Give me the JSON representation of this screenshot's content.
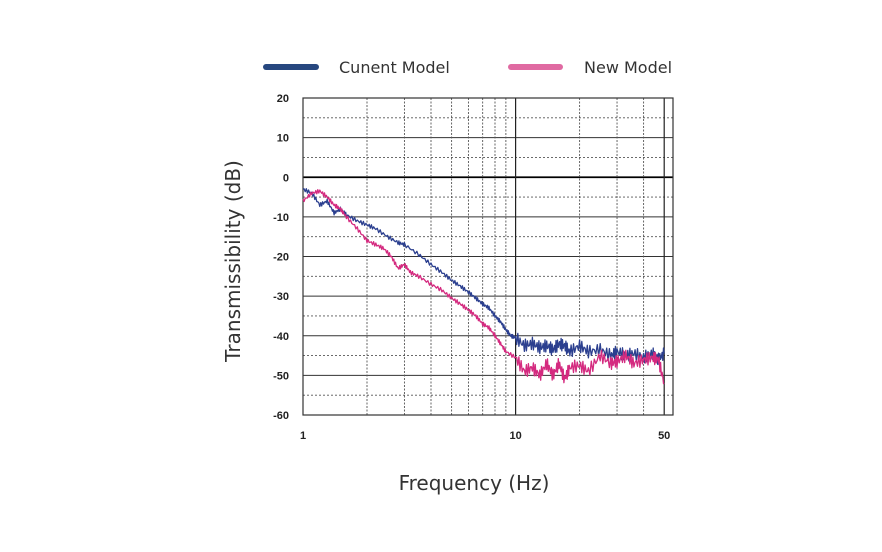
{
  "chart_data": {
    "type": "line",
    "title": "",
    "xlabel": "Frequency (Hz)",
    "ylabel": "Transmissibility (dB)",
    "x_scale": "log",
    "xlim": [
      1,
      55
    ],
    "ylim": [
      -60,
      20
    ],
    "x_ticks": [
      1,
      10,
      50
    ],
    "x_tick_labels": [
      "1",
      "10",
      "50"
    ],
    "y_ticks": [
      20,
      10,
      0,
      -10,
      -20,
      -30,
      -40,
      -50,
      -60
    ],
    "y_tick_labels": [
      "20",
      "10",
      "0",
      "-10",
      "-20",
      "-30",
      "-40",
      "-50",
      "-60"
    ],
    "grid": true,
    "legend_position": "top",
    "series": [
      {
        "name": "Cunent Model",
        "color": "#2b3f8f",
        "legend_color": "#27477f",
        "x": [
          1.0,
          1.1,
          1.2,
          1.3,
          1.4,
          1.5,
          1.6,
          1.8,
          2.0,
          2.2,
          2.5,
          2.8,
          3.0,
          3.5,
          4.0,
          4.5,
          5.0,
          5.5,
          6.0,
          6.5,
          7.0,
          7.5,
          8.0,
          8.5,
          9.0,
          9.5,
          10.0,
          11.0,
          12.0,
          13.0,
          14.0,
          15.0,
          16.0,
          17.0,
          18.0,
          20.0,
          22.0,
          25.0,
          28.0,
          30.0,
          33.0,
          36.0,
          40.0,
          44.0,
          47.0,
          50.0
        ],
        "y": [
          -3,
          -4,
          -7,
          -6,
          -9,
          -8,
          -9.5,
          -11,
          -12,
          -13,
          -15,
          -16.5,
          -17,
          -19.5,
          -22,
          -24,
          -26,
          -27.5,
          -29,
          -30.5,
          -32,
          -33,
          -35,
          -36.5,
          -38.5,
          -40,
          -40.5,
          -42.5,
          -42,
          -43,
          -42.5,
          -43.5,
          -42,
          -42.5,
          -44,
          -42.5,
          -44,
          -43.5,
          -45,
          -44,
          -45,
          -44.5,
          -45.5,
          -44.5,
          -46,
          -44.5
        ]
      },
      {
        "name": "New Model",
        "color": "#d42a7f",
        "legend_color": "#e06aa2",
        "x": [
          1.0,
          1.1,
          1.2,
          1.3,
          1.4,
          1.5,
          1.6,
          1.8,
          2.0,
          2.2,
          2.4,
          2.6,
          2.8,
          3.0,
          3.2,
          3.5,
          4.0,
          4.5,
          5.0,
          5.5,
          6.0,
          6.5,
          7.0,
          7.5,
          8.0,
          8.5,
          9.0,
          10.0,
          11.0,
          12.0,
          13.0,
          14.0,
          15.0,
          16.0,
          17.0,
          18.0,
          20.0,
          22.0,
          25.0,
          28.0,
          30.0,
          33.0,
          36.0,
          40.0,
          44.0,
          47.0,
          50.0
        ],
        "y": [
          -6,
          -4,
          -3.5,
          -5,
          -7,
          -8,
          -10,
          -13,
          -16,
          -17,
          -18,
          -20,
          -23,
          -22,
          -24,
          -25,
          -27,
          -28.5,
          -30.5,
          -32,
          -33.5,
          -35,
          -37,
          -38,
          -40,
          -42,
          -44,
          -45.5,
          -49,
          -48,
          -50,
          -47,
          -50,
          -47,
          -51,
          -48,
          -47.5,
          -49,
          -45,
          -47,
          -46.5,
          -45,
          -47,
          -46,
          -45.5,
          -46,
          -52
        ]
      }
    ]
  }
}
